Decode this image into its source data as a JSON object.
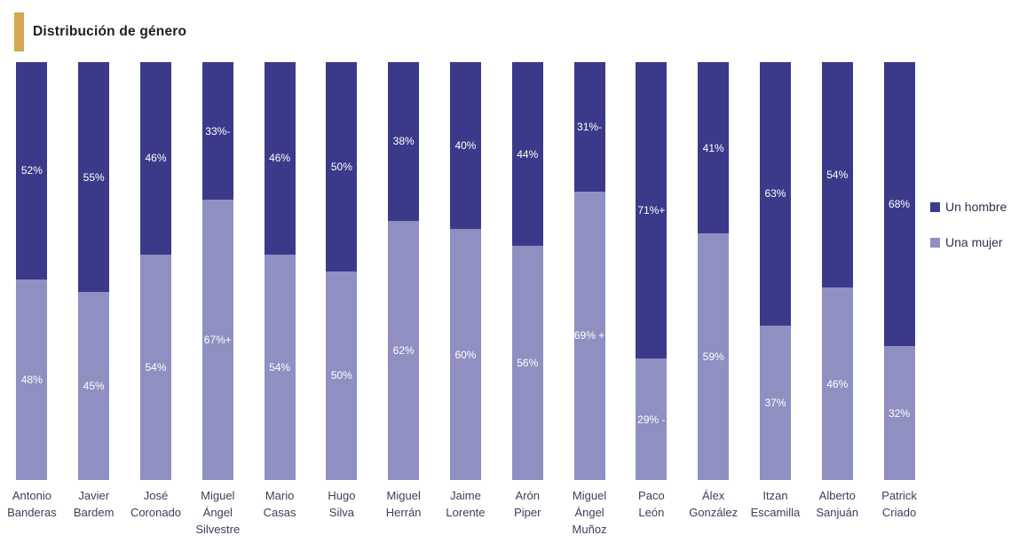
{
  "title": "Distribución de género",
  "accent_color": "#D2A850",
  "legend": [
    {
      "label": "Un hombre",
      "color": "#3B3A8A"
    },
    {
      "label": "Una mujer",
      "color": "#908FC1"
    }
  ],
  "chart_data": {
    "type": "bar",
    "stacked": true,
    "orientation": "vertical",
    "title": "Distribución de género",
    "xlabel": "",
    "ylabel": "",
    "ylim": [
      0,
      100
    ],
    "grid": false,
    "legend_position": "right",
    "value_label_color": "#FFFFFF",
    "categories": [
      "Antonio Banderas",
      "Javier Bardem",
      "José Coronado",
      "Miguel Ángel Silvestre",
      "Mario Casas",
      "Hugo Silva",
      "Miguel Herrán",
      "Jaime Lorente",
      "Arón Piper",
      "Miguel Ángel Muñoz",
      "Paco León",
      "Álex González",
      "Itzan Escamilla",
      "Alberto Sanjuán",
      "Patrick Criado"
    ],
    "category_lines": [
      [
        "Antonio",
        "Banderas"
      ],
      [
        "Javier",
        "Bardem"
      ],
      [
        "José",
        "Coronado"
      ],
      [
        "Miguel",
        "Ángel",
        "Silvestre"
      ],
      [
        "Mario",
        "Casas"
      ],
      [
        "Hugo",
        "Silva"
      ],
      [
        "Miguel",
        "Herrán"
      ],
      [
        "Jaime",
        "Lorente"
      ],
      [
        "Arón",
        "Piper"
      ],
      [
        "Miguel",
        "Ángel",
        "Muñoz"
      ],
      [
        "Paco",
        "León"
      ],
      [
        "Álex",
        "González"
      ],
      [
        "Itzan",
        "Escamilla"
      ],
      [
        "Alberto",
        "Sanjuán"
      ],
      [
        "Patrick",
        "Criado"
      ]
    ],
    "series": [
      {
        "name": "Un hombre",
        "color": "#3B3A8A",
        "values": [
          52,
          55,
          46,
          33,
          46,
          50,
          38,
          40,
          44,
          31,
          71,
          41,
          63,
          54,
          68
        ],
        "labels": [
          "52%",
          "55%",
          "46%",
          "33%-",
          "46%",
          "50%",
          "38%",
          "40%",
          "44%",
          "31%-",
          "71%+",
          "41%",
          "63%",
          "54%",
          "68%"
        ]
      },
      {
        "name": "Una mujer",
        "color": "#908FC1",
        "values": [
          48,
          45,
          54,
          67,
          54,
          50,
          62,
          60,
          56,
          69,
          29,
          59,
          37,
          46,
          32
        ],
        "labels": [
          "48%",
          "45%",
          "54%",
          "67%+",
          "54%",
          "50%",
          "62%",
          "60%",
          "56%",
          "69% +",
          "29% -",
          "59%",
          "37%",
          "46%",
          "32%"
        ]
      }
    ]
  }
}
